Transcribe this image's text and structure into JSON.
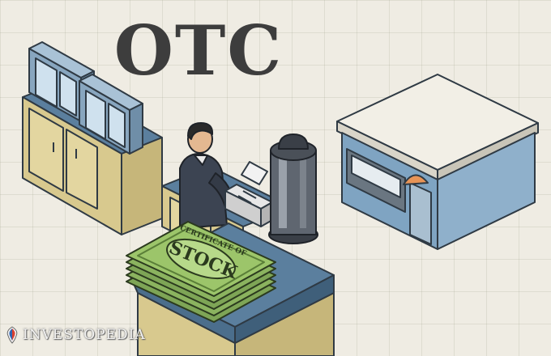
{
  "title": "OTC",
  "certificate": {
    "top_text": "CERTIFICATE OF",
    "main_text": "STOCK"
  },
  "brand": {
    "name": "INVESTOPEDIA",
    "mark_icon": "investopedia-logo-mark"
  },
  "colors": {
    "background": "#efece3",
    "title": "#3d3d3d",
    "counter_top": "#5b7f9e",
    "cabinet": "#d8c98e",
    "money": "#9cc56a",
    "building_roof": "#f2efe6",
    "building_wall": "#7fa4c2"
  }
}
